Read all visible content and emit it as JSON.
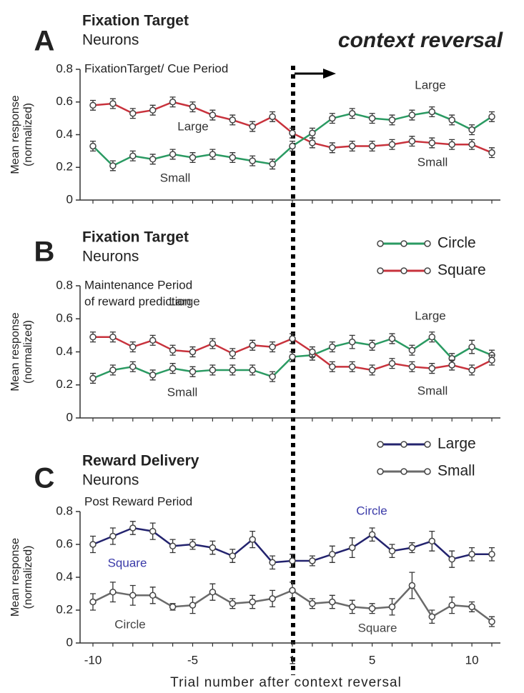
{
  "figure_annotation": "context reversal",
  "chart_data": [
    {
      "type": "line",
      "panel": "A",
      "title": "Fixation Target",
      "subtitle": "Neurons",
      "period_label": [
        "FixationTarget/ Cue Period"
      ],
      "ylabel": "Mean response",
      "ylabel2": "(normalized)",
      "ylim": [
        0,
        0.8
      ],
      "yticks": [
        0,
        0.2,
        0.4,
        0.6,
        0.8
      ],
      "series": [
        {
          "color": "#c8323c",
          "values": [
            0.58,
            0.59,
            0.53,
            0.55,
            0.6,
            0.57,
            0.52,
            0.49,
            0.45,
            0.51,
            0.41,
            0.35,
            0.32,
            0.33,
            0.33,
            0.34,
            0.36,
            0.35,
            0.34,
            0.34,
            0.29
          ],
          "errors": [
            0.03,
            0.03,
            0.03,
            0.03,
            0.03,
            0.03,
            0.03,
            0.03,
            0.03,
            0.03,
            0.03,
            0.03,
            0.03,
            0.03,
            0.03,
            0.03,
            0.03,
            0.03,
            0.03,
            0.03,
            0.03
          ]
        },
        {
          "color": "#2a9a62",
          "values": [
            0.33,
            0.21,
            0.27,
            0.25,
            0.28,
            0.26,
            0.28,
            0.26,
            0.24,
            0.22,
            0.33,
            0.41,
            0.5,
            0.53,
            0.5,
            0.49,
            0.52,
            0.54,
            0.49,
            0.43,
            0.51
          ],
          "errors": [
            0.03,
            0.03,
            0.03,
            0.03,
            0.03,
            0.03,
            0.03,
            0.03,
            0.03,
            0.03,
            0.03,
            0.03,
            0.03,
            0.03,
            0.03,
            0.03,
            0.03,
            0.03,
            0.03,
            0.03,
            0.03
          ]
        }
      ],
      "annotations": [
        {
          "text": "Large",
          "color": "#333"
        },
        {
          "text": "Small",
          "color": "#333"
        },
        {
          "text": "Large",
          "color": "#333"
        },
        {
          "text": "Small",
          "color": "#333"
        }
      ]
    },
    {
      "type": "line",
      "panel": "B",
      "title": "Fixation Target",
      "subtitle": "Neurons",
      "period_label": [
        "Maintenance Period",
        "of reward prediction"
      ],
      "ylabel": "Mean response",
      "ylabel2": "(normalized)",
      "ylim": [
        0,
        0.8
      ],
      "yticks": [
        0,
        0.2,
        0.4,
        0.6,
        0.8
      ],
      "series": [
        {
          "name": "Circle",
          "color": "#2a9a62",
          "values": [
            0.24,
            0.29,
            0.31,
            0.26,
            0.3,
            0.28,
            0.29,
            0.29,
            0.29,
            0.25,
            0.37,
            0.38,
            0.43,
            0.46,
            0.44,
            0.48,
            0.41,
            0.49,
            0.36,
            0.43,
            0.38
          ],
          "errors": [
            0.03,
            0.03,
            0.03,
            0.03,
            0.03,
            0.03,
            0.03,
            0.03,
            0.03,
            0.03,
            0.03,
            0.03,
            0.03,
            0.04,
            0.03,
            0.03,
            0.03,
            0.03,
            0.03,
            0.04,
            0.03
          ]
        },
        {
          "name": "Square",
          "color": "#c8323c",
          "values": [
            0.49,
            0.49,
            0.43,
            0.47,
            0.41,
            0.4,
            0.45,
            0.39,
            0.44,
            0.43,
            0.48,
            0.4,
            0.31,
            0.31,
            0.29,
            0.33,
            0.31,
            0.3,
            0.32,
            0.29,
            0.35
          ],
          "errors": [
            0.03,
            0.03,
            0.03,
            0.03,
            0.03,
            0.03,
            0.03,
            0.03,
            0.03,
            0.03,
            0.03,
            0.03,
            0.03,
            0.03,
            0.03,
            0.03,
            0.03,
            0.03,
            0.03,
            0.03,
            0.03
          ]
        }
      ],
      "legend": true,
      "annotations": [
        {
          "text": "Large",
          "color": "#333"
        },
        {
          "text": "Small",
          "color": "#333"
        },
        {
          "text": "Large",
          "color": "#333"
        },
        {
          "text": "Small",
          "color": "#333"
        }
      ]
    },
    {
      "type": "line",
      "panel": "C",
      "title": "Reward Delivery",
      "subtitle": "Neurons",
      "period_label": [
        "Post Reward Period"
      ],
      "ylabel": "Mean response",
      "ylabel2": "(normalized)",
      "xlabel": "Trial number after context reversal",
      "categories": [
        "-10",
        null,
        null,
        null,
        null,
        "-5",
        null,
        null,
        null,
        null,
        "1",
        null,
        null,
        null,
        "5",
        null,
        null,
        null,
        null,
        "10",
        null
      ],
      "ylim": [
        0,
        0.8
      ],
      "yticks": [
        0,
        0.2,
        0.4,
        0.6,
        0.8
      ],
      "series": [
        {
          "name": "Large",
          "color": "#23236e",
          "values": [
            0.6,
            0.65,
            0.7,
            0.68,
            0.59,
            0.6,
            0.58,
            0.53,
            0.63,
            0.49,
            0.5,
            0.5,
            0.54,
            0.58,
            0.66,
            0.56,
            0.58,
            0.62,
            0.51,
            0.54,
            0.54
          ],
          "errors": [
            0.05,
            0.05,
            0.04,
            0.05,
            0.04,
            0.03,
            0.04,
            0.04,
            0.05,
            0.04,
            0.04,
            0.03,
            0.05,
            0.06,
            0.04,
            0.04,
            0.03,
            0.06,
            0.05,
            0.04,
            0.04
          ]
        },
        {
          "name": "Small",
          "color": "#6a6a6a",
          "values": [
            0.25,
            0.31,
            0.29,
            0.29,
            0.22,
            0.23,
            0.31,
            0.24,
            0.25,
            0.27,
            0.32,
            0.24,
            0.25,
            0.22,
            0.21,
            0.22,
            0.35,
            0.16,
            0.23,
            0.22,
            0.13
          ],
          "errors": [
            0.05,
            0.06,
            0.06,
            0.05,
            0.02,
            0.05,
            0.05,
            0.03,
            0.04,
            0.05,
            0.05,
            0.03,
            0.04,
            0.04,
            0.03,
            0.05,
            0.08,
            0.04,
            0.05,
            0.03,
            0.03
          ]
        }
      ],
      "legend": true,
      "annotations": [
        {
          "text": "Circle",
          "color": "#3a3aa8"
        },
        {
          "text": "Square",
          "color": "#3a3aa8"
        },
        {
          "text": "Circle",
          "color": "#444"
        },
        {
          "text": "Square",
          "color": "#444"
        }
      ]
    }
  ]
}
